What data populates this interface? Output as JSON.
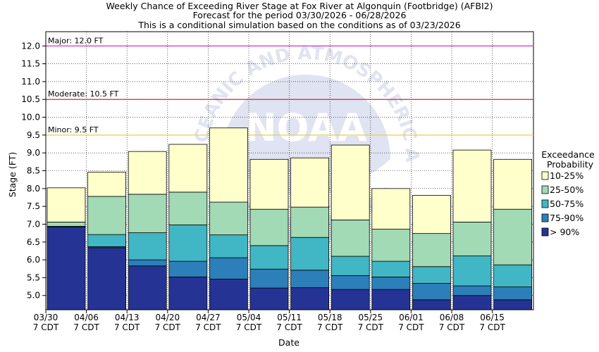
{
  "chart_data": {
    "type": "bar",
    "stacked": true,
    "title_lines": [
      "Weekly Chance of Exceeding River Stage at Fox River at Algonquin (Footbridge) (AFBI2)",
      "Forecast for the period 03/30/2026 - 06/28/2026",
      "This is a conditional simulation based on the conditions as of 03/23/2026"
    ],
    "xlabel": "Date",
    "ylabel": "Stage (FT)",
    "ylim": [
      4.6,
      12.4
    ],
    "y_ticks": [
      5.0,
      5.5,
      6.0,
      6.5,
      7.0,
      7.5,
      8.0,
      8.5,
      9.0,
      9.5,
      10.0,
      10.5,
      11.0,
      11.5,
      12.0
    ],
    "y_tick_labels": [
      "5.0",
      "5.5",
      "6.0",
      "6.5",
      "7.0",
      "7.5",
      "8.0",
      "8.5",
      "9.0",
      "9.5",
      "10.0",
      "10.5",
      "11.0",
      "11.5",
      "12.0"
    ],
    "x_tick_labels": [
      {
        "date": "03/30",
        "tz": "7 CDT"
      },
      {
        "date": "04/06",
        "tz": "7 CDT"
      },
      {
        "date": "04/13",
        "tz": "7 CDT"
      },
      {
        "date": "04/20",
        "tz": "7 CDT"
      },
      {
        "date": "04/27",
        "tz": "7 CDT"
      },
      {
        "date": "05/04",
        "tz": "7 CDT"
      },
      {
        "date": "05/11",
        "tz": "7 CDT"
      },
      {
        "date": "05/18",
        "tz": "7 CDT"
      },
      {
        "date": "05/25",
        "tz": "7 CDT"
      },
      {
        "date": "06/01",
        "tz": "7 CDT"
      },
      {
        "date": "06/08",
        "tz": "7 CDT"
      },
      {
        "date": "06/15",
        "tz": "7 CDT"
      }
    ],
    "flood_levels": [
      {
        "label": "Major: 12.0 FT",
        "value": 12.0,
        "color": "#cc33cc"
      },
      {
        "label": "Moderate: 10.5 FT",
        "value": 10.5,
        "color": "#dd2244"
      },
      {
        "label": "Minor: 9.5 FT",
        "value": 9.5,
        "color": "#e8d040"
      }
    ],
    "legend": {
      "title_lines": [
        "Exceedance",
        "Probability"
      ],
      "placement": "right"
    },
    "series": [
      {
        "name": "> 90%",
        "color": "#253494",
        "top": [
          6.92,
          6.34,
          5.83,
          5.52,
          5.46,
          5.21,
          5.22,
          5.17,
          5.17,
          4.88,
          5.0,
          4.88
        ]
      },
      {
        "name": "75-90%",
        "color": "#2c7fb8",
        "top": [
          6.94,
          6.37,
          6.0,
          5.96,
          6.06,
          5.74,
          5.71,
          5.56,
          5.52,
          5.34,
          5.27,
          5.24
        ]
      },
      {
        "name": "50-75%",
        "color": "#41b6c4",
        "top": [
          6.94,
          6.71,
          6.76,
          6.98,
          6.7,
          6.4,
          6.63,
          6.1,
          5.96,
          5.81,
          6.11,
          5.86
        ]
      },
      {
        "name": "25-50%",
        "color": "#a1dab4",
        "top": [
          7.06,
          7.78,
          7.84,
          7.9,
          7.62,
          7.42,
          7.48,
          7.12,
          6.86,
          6.74,
          7.06,
          7.42
        ]
      },
      {
        "name": "10-25%",
        "color": "#ffffcc",
        "top": [
          8.02,
          8.46,
          9.04,
          9.24,
          9.7,
          8.82,
          8.86,
          9.22,
          8.0,
          7.81,
          9.08,
          8.82
        ]
      }
    ],
    "grid": true
  }
}
